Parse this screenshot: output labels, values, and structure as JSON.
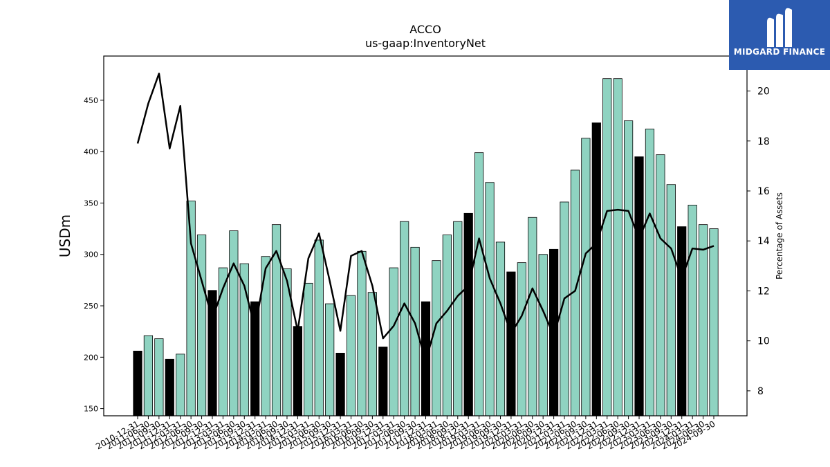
{
  "chart_data": {
    "type": "bar",
    "title": "ACCO",
    "subtitle": "us-gaap:InventoryNet",
    "ylabel": "USDm",
    "y2label": "Percentage of Assets",
    "ylim": [
      143,
      493
    ],
    "y2lim": [
      7.0,
      21.4
    ],
    "yticks": [
      150,
      200,
      250,
      300,
      350,
      400,
      450
    ],
    "y2ticks": [
      8,
      10,
      12,
      14,
      16,
      18,
      20
    ],
    "categories": [
      "2010-12-31",
      "2011-06-30",
      "2011-09-30",
      "2011-12-31",
      "2012-03-31",
      "2012-06-30",
      "2012-09-30",
      "2012-12-31",
      "2013-03-31",
      "2013-06-30",
      "2013-09-30",
      "2013-12-31",
      "2014-03-31",
      "2014-06-30",
      "2014-09-30",
      "2014-12-31",
      "2015-03-31",
      "2015-06-30",
      "2015-09-30",
      "2015-12-31",
      "2016-03-31",
      "2016-06-30",
      "2016-09-30",
      "2016-12-31",
      "2017-03-31",
      "2017-06-30",
      "2017-09-30",
      "2017-12-31",
      "2018-03-31",
      "2018-06-30",
      "2018-09-30",
      "2018-12-31",
      "2019-03-31",
      "2019-06-30",
      "2019-09-30",
      "2019-12-31",
      "2020-03-31",
      "2020-06-30",
      "2020-09-30",
      "2020-12-31",
      "2021-03-31",
      "2021-06-30",
      "2021-09-30",
      "2021-12-31",
      "2022-03-31",
      "2022-06-30",
      "2022-09-30",
      "2022-12-31",
      "2023-03-31",
      "2023-06-30",
      "2023-09-30",
      "2023-12-31",
      "2024-03-31",
      "2024-06-30",
      "2024-09-30"
    ],
    "series": [
      {
        "values": [
          206,
          221,
          218,
          198,
          203,
          352,
          319,
          265,
          287,
          323,
          291,
          254,
          298,
          329,
          286,
          230,
          272,
          314,
          252,
          204,
          260,
          303,
          263,
          210,
          287,
          332,
          307,
          254,
          294,
          319,
          332,
          340,
          399,
          370,
          312,
          283,
          292,
          336,
          300,
          305,
          351,
          382,
          413,
          428,
          471,
          471,
          430,
          395,
          422,
          397,
          368,
          327,
          348,
          329,
          325
        ],
        "year_end": [
          true,
          false,
          false,
          true,
          false,
          false,
          false,
          true,
          false,
          false,
          false,
          true,
          false,
          false,
          false,
          true,
          false,
          false,
          false,
          true,
          false,
          false,
          false,
          true,
          false,
          false,
          false,
          true,
          false,
          false,
          false,
          true,
          false,
          false,
          false,
          true,
          false,
          false,
          false,
          true,
          false,
          false,
          false,
          true,
          false,
          false,
          false,
          true,
          false,
          false,
          false,
          true,
          false,
          false,
          false
        ]
      },
      {
        "values": [
          17.9,
          19.5,
          20.7,
          17.7,
          19.4,
          13.9,
          12.4,
          10.9,
          12.1,
          13.1,
          12.2,
          10.5,
          12.9,
          13.6,
          12.4,
          10.4,
          13.3,
          14.3,
          12.4,
          10.4,
          13.4,
          13.6,
          12.2,
          10.1,
          10.6,
          11.5,
          10.7,
          9.2,
          10.7,
          11.2,
          11.8,
          12.2,
          14.1,
          12.5,
          11.5,
          10.3,
          11.0,
          12.1,
          11.2,
          10.2,
          11.7,
          12.0,
          13.5,
          13.9,
          15.2,
          15.25,
          15.2,
          14.1,
          15.1,
          14.1,
          13.7,
          12.5,
          13.7,
          13.65,
          13.8
        ]
      }
    ],
    "colors": {
      "bar": "#8fd3c1",
      "bar_year_end": "#000000",
      "line": "#000000"
    },
    "grid": false,
    "legend": "none"
  },
  "branding": {
    "name": "MIDGARD FINANCE",
    "bg": "#2c5bb0"
  }
}
